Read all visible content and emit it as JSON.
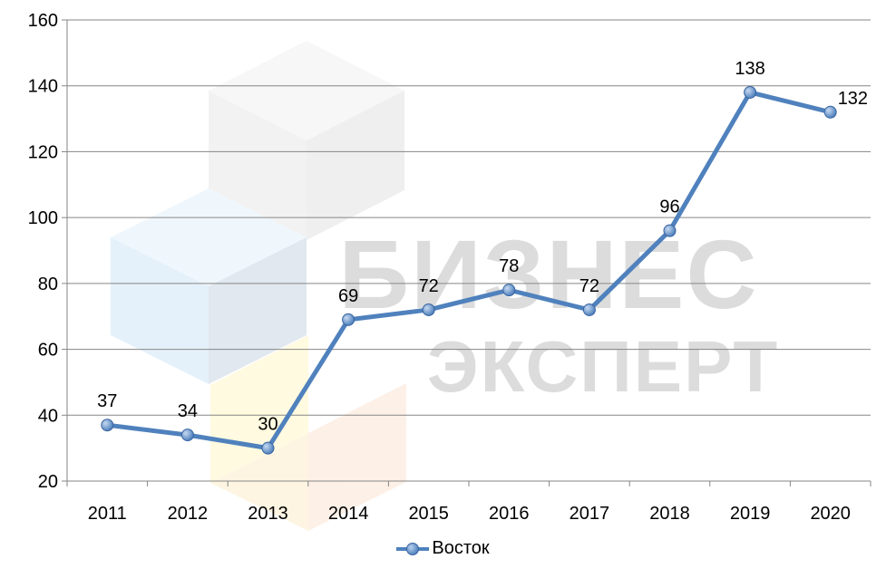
{
  "watermark": {
    "line1": "БИЗНЕС",
    "line2": "ЭКСПЕРТ"
  },
  "chart_data": {
    "type": "line",
    "categories": [
      "2011",
      "2012",
      "2013",
      "2014",
      "2015",
      "2016",
      "2017",
      "2018",
      "2019",
      "2020"
    ],
    "series": [
      {
        "name": "Восток",
        "values": [
          37,
          34,
          30,
          69,
          72,
          78,
          72,
          96,
          138,
          132
        ],
        "color": "#4f81bd"
      }
    ],
    "ylim": [
      20,
      160
    ],
    "yticks": [
      20,
      40,
      60,
      80,
      100,
      120,
      140,
      160
    ],
    "grid": true,
    "legend": "bottom",
    "data_labels": true
  }
}
